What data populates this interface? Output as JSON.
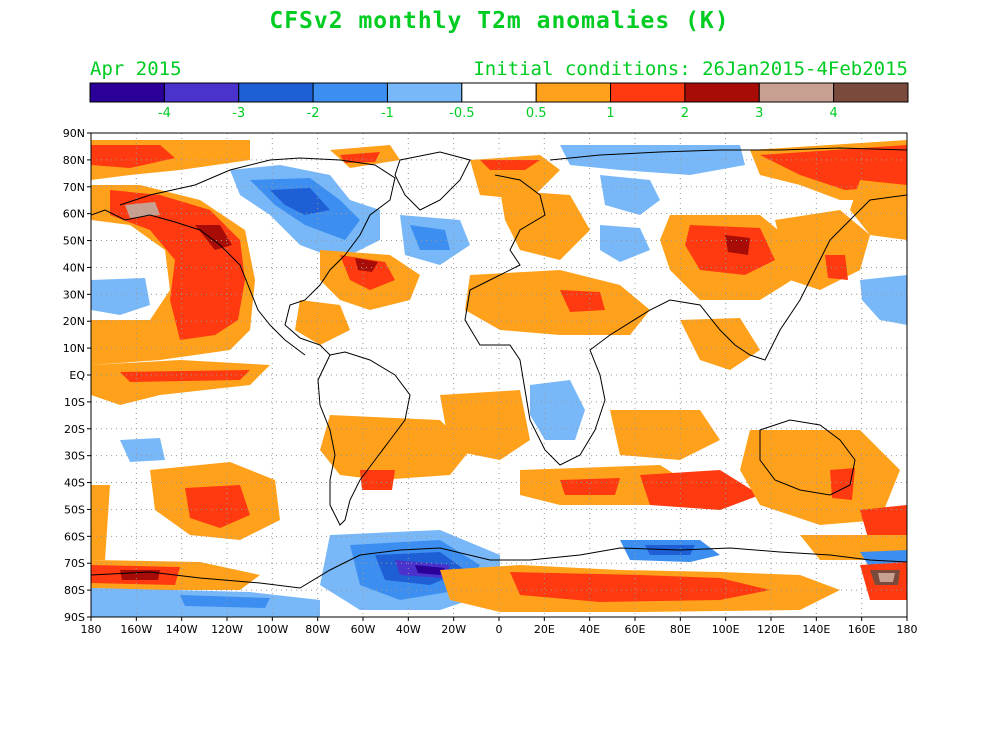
{
  "title": "CFSv2 monthly T2m anomalies (K)",
  "forecast_month": "Apr 2015",
  "initial_conditions": "Initial conditions: 26Jan2015-4Feb2015",
  "colorbar": {
    "colors": [
      "#2a0099",
      "#4a32cc",
      "#1e5fd6",
      "#3c8ff0",
      "#78b8f8",
      "#ffffff",
      "#ffa11a",
      "#ff3a10",
      "#a80c06",
      "#c8a092",
      "#7a4a3c"
    ],
    "labels": [
      "-4",
      "-3",
      "-2",
      "-1",
      "-0.5",
      "0.5",
      "1",
      "2",
      "3",
      "4"
    ]
  },
  "axes": {
    "lat_labels": [
      "90N",
      "80N",
      "70N",
      "60N",
      "50N",
      "40N",
      "30N",
      "20N",
      "10N",
      "EQ",
      "10S",
      "20S",
      "30S",
      "40S",
      "50S",
      "60S",
      "70S",
      "80S",
      "90S"
    ],
    "lon_labels": [
      "180",
      "160W",
      "140W",
      "120W",
      "100W",
      "80W",
      "60W",
      "40W",
      "20W",
      "0",
      "20E",
      "40E",
      "60E",
      "80E",
      "100E",
      "120E",
      "140E",
      "160E",
      "180"
    ]
  },
  "colors": {
    "label_green": "#00cc22",
    "coast": "#000000",
    "grid": "#999999"
  }
}
